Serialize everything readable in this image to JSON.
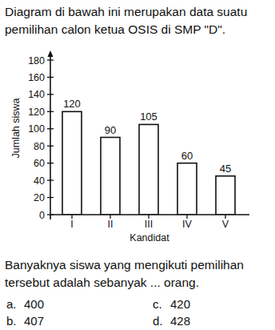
{
  "intro": [
    "Diagram di bawah ini merupakan data suatu",
    "pemilihan calon ketua OSIS di SMP \"D\"."
  ],
  "chart_data": {
    "type": "bar",
    "y_label": "Jumlah siswa",
    "x_label": "Kandidat",
    "categories": [
      "I",
      "II",
      "III",
      "IV",
      "V"
    ],
    "values": [
      120,
      90,
      105,
      60,
      45
    ],
    "color": "#ffffff",
    "ylim": [
      0,
      180
    ],
    "yticks": [
      0,
      20,
      40,
      60,
      80,
      100,
      120,
      140,
      160,
      180
    ],
    "grid": false,
    "data_labels": true
  },
  "question": [
    "Banyaknya siswa yang mengikuti pemilihan",
    "tersebut adalah sebanyak ... orang."
  ],
  "options": [
    {
      "letter": "a.",
      "text": "400"
    },
    {
      "letter": "b.",
      "text": "407"
    },
    {
      "letter": "c.",
      "text": "420"
    },
    {
      "letter": "d.",
      "text": "428"
    }
  ]
}
